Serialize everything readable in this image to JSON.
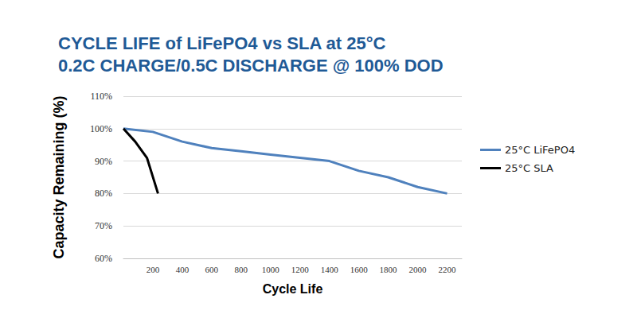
{
  "chart_data": {
    "type": "line",
    "title": "CYCLE LIFE of LiFePO4 vs SLA at 25°C",
    "subtitle": "0.2C CHARGE/0.5C DISCHARGE @ 100% DOD",
    "x_label": "Cycle Life",
    "y_label": "Capacity Remaining (%)",
    "xlim": [
      0,
      2300
    ],
    "xticks": [
      200,
      400,
      600,
      800,
      1000,
      1200,
      1400,
      1600,
      1800,
      2000,
      2200
    ],
    "ylim": [
      60,
      110
    ],
    "yticks": [
      {
        "value": 60,
        "label": "60%"
      },
      {
        "value": 70,
        "label": "70%"
      },
      {
        "value": 80,
        "label": "80%"
      },
      {
        "value": 90,
        "label": "90%"
      },
      {
        "value": 100,
        "label": "100%"
      },
      {
        "value": 110,
        "label": "110%"
      }
    ],
    "grid": true,
    "legend": "right",
    "series": [
      {
        "name": "25°C LiFePO4",
        "color": "#4f81bd",
        "x": [
          0,
          200,
          400,
          600,
          800,
          1000,
          1200,
          1400,
          1600,
          1800,
          2000,
          2200
        ],
        "values": [
          100,
          99,
          96,
          94,
          93,
          92,
          91,
          90,
          87,
          85,
          82,
          80
        ]
      },
      {
        "name": "25°C SLA",
        "color": "#000000",
        "x": [
          0,
          80,
          160,
          235
        ],
        "values": [
          100,
          96,
          91,
          80
        ]
      }
    ]
  }
}
